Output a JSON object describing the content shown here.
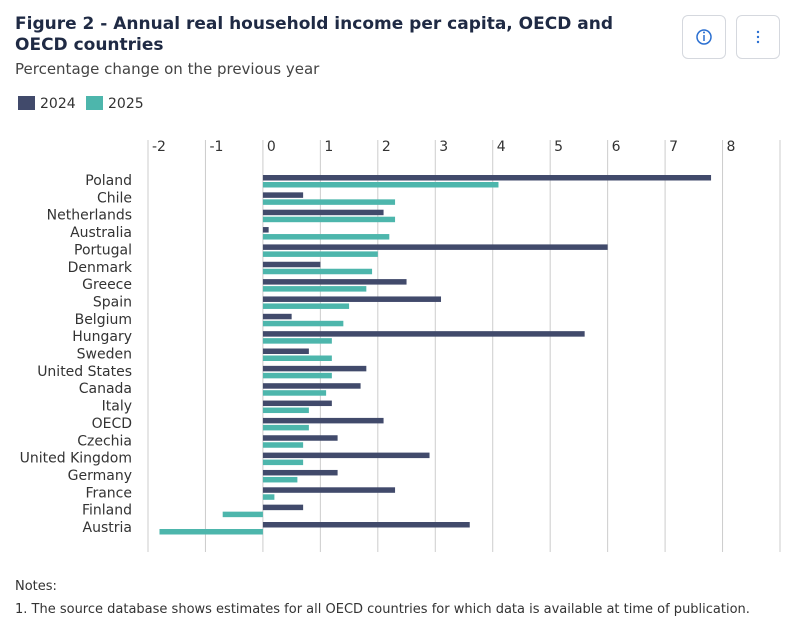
{
  "chart_data": {
    "type": "bar",
    "orientation": "horizontal",
    "title": "Figure 2 - Annual real household income per capita, OECD and OECD countries",
    "subtitle": "Percentage change on the previous year",
    "categories": [
      "Poland",
      "Chile",
      "Netherlands",
      "Australia",
      "Portugal",
      "Denmark",
      "Greece",
      "Spain",
      "Belgium",
      "Hungary",
      "Sweden",
      "United States",
      "Canada",
      "Italy",
      "OECD",
      "Czechia",
      "United Kingdom",
      "Germany",
      "France",
      "Finland",
      "Austria"
    ],
    "series": [
      {
        "name": "2024",
        "color": "#414a6b",
        "values": [
          7.8,
          0.7,
          2.1,
          0.1,
          6.0,
          1.0,
          2.5,
          3.1,
          0.5,
          5.6,
          0.8,
          1.8,
          1.7,
          1.2,
          2.1,
          1.3,
          2.9,
          1.3,
          2.3,
          0.7,
          3.6
        ]
      },
      {
        "name": "2025",
        "color": "#4db6ac",
        "values": [
          4.1,
          2.3,
          2.3,
          2.2,
          2.0,
          1.9,
          1.8,
          1.5,
          1.4,
          1.2,
          1.2,
          1.2,
          1.1,
          0.8,
          0.8,
          0.7,
          0.7,
          0.6,
          0.2,
          -0.7,
          -1.8
        ]
      }
    ],
    "xlim": [
      -2,
      9
    ],
    "xticks": [
      -2,
      -1,
      0,
      1,
      2,
      3,
      4,
      5,
      6,
      7,
      8
    ],
    "grid": true,
    "legend": "top-left"
  },
  "notes": {
    "title": "Notes:",
    "items": [
      "1. The source database shows estimates for all OECD countries for which data is available at time of publication."
    ]
  }
}
